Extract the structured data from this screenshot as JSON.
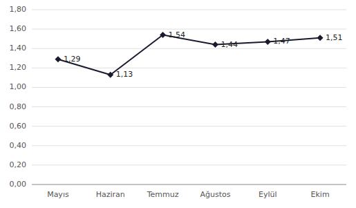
{
  "chart_data": {
    "type": "line",
    "categories": [
      "Mayıs",
      "Haziran",
      "Temmuz",
      "Ağustos",
      "Eylül",
      "Ekim"
    ],
    "values": [
      1.29,
      1.13,
      1.54,
      1.44,
      1.47,
      1.51
    ],
    "value_labels": [
      "1,29",
      "1,13",
      "1,54",
      "1,44",
      "1,47",
      "1,51"
    ],
    "color": "#1a1a2e",
    "marker": "diamond",
    "ylim": [
      0,
      1.8
    ],
    "yticks": [
      {
        "value": 0,
        "label": "0,00"
      },
      {
        "value": 0.2,
        "label": "0,20"
      },
      {
        "value": 0.4,
        "label": "0,40"
      },
      {
        "value": 0.6,
        "label": "0,60"
      },
      {
        "value": 0.8,
        "label": "0,80"
      },
      {
        "value": 1,
        "label": "1,00"
      },
      {
        "value": 1.2,
        "label": "1,20"
      },
      {
        "value": 1.4,
        "label": "1,40"
      },
      {
        "value": 1.6,
        "label": "1,60"
      },
      {
        "value": 1.8,
        "label": "1,80"
      }
    ],
    "grid": true,
    "data_labels": true
  }
}
